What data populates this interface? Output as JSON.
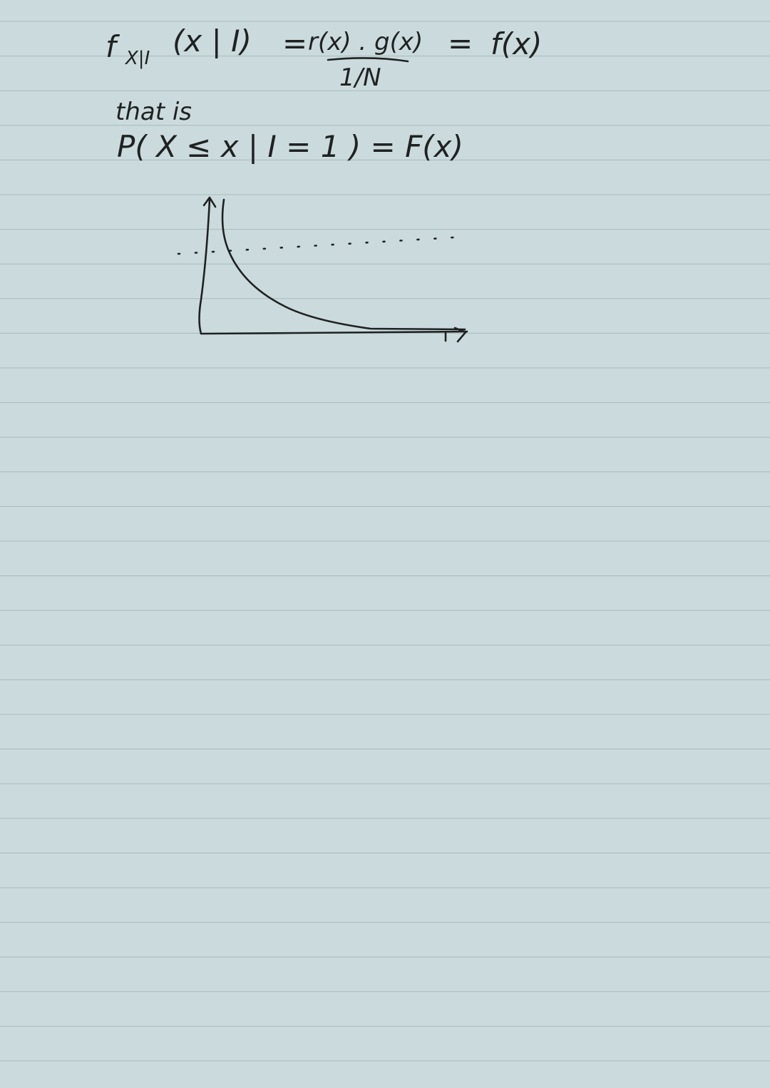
{
  "note": {
    "line1": {
      "function": "f",
      "subscript": "X|I",
      "args": "(x | I)",
      "equals": "=",
      "numerator": "r(x) . g(x)",
      "denominator": "1/N",
      "result": "f(x)"
    },
    "line2": "that is",
    "line3": "P( X ≤ x | I = 1 ) = F(x)"
  }
}
